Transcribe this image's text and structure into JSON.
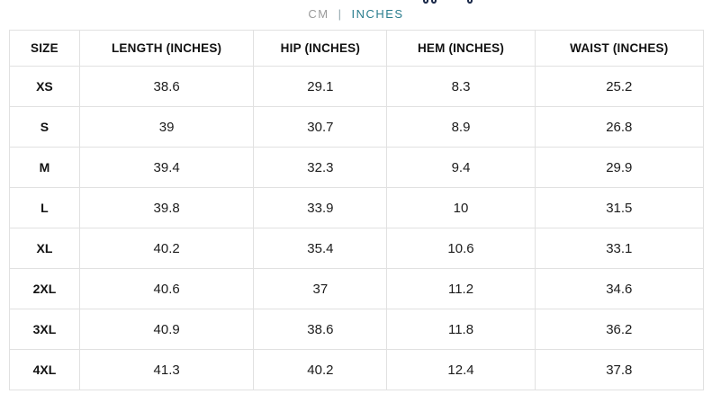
{
  "unit_toggle": {
    "cm_label": "CM",
    "separator": "|",
    "inches_label": "INCHES",
    "selected_unit": "INCHES",
    "cm_color": "#9b9b9b",
    "inches_color": "#2a7d8e"
  },
  "table": {
    "columns": [
      "SIZE",
      "LENGTH (INCHES)",
      "HIP (INCHES)",
      "HEM (INCHES)",
      "WAIST (INCHES)"
    ],
    "rows": [
      {
        "size": "XS",
        "values": [
          "38.6",
          "29.1",
          "8.3",
          "25.2"
        ]
      },
      {
        "size": "S",
        "values": [
          "39",
          "30.7",
          "8.9",
          "26.8"
        ]
      },
      {
        "size": "M",
        "values": [
          "39.4",
          "32.3",
          "9.4",
          "29.9"
        ]
      },
      {
        "size": "L",
        "values": [
          "39.8",
          "33.9",
          "10",
          "31.5"
        ]
      },
      {
        "size": "XL",
        "values": [
          "40.2",
          "35.4",
          "10.6",
          "33.1"
        ]
      },
      {
        "size": "2XL",
        "values": [
          "40.6",
          "37",
          "11.2",
          "34.6"
        ]
      },
      {
        "size": "3XL",
        "values": [
          "40.9",
          "38.6",
          "11.8",
          "36.2"
        ]
      },
      {
        "size": "4XL",
        "values": [
          "41.3",
          "40.2",
          "12.4",
          "37.8"
        ]
      }
    ]
  },
  "colors": {
    "accent_teal": "#2a7d8e",
    "muted_gray": "#9b9b9b",
    "table_border": "#e1e1e1",
    "background": "#ffffff"
  }
}
